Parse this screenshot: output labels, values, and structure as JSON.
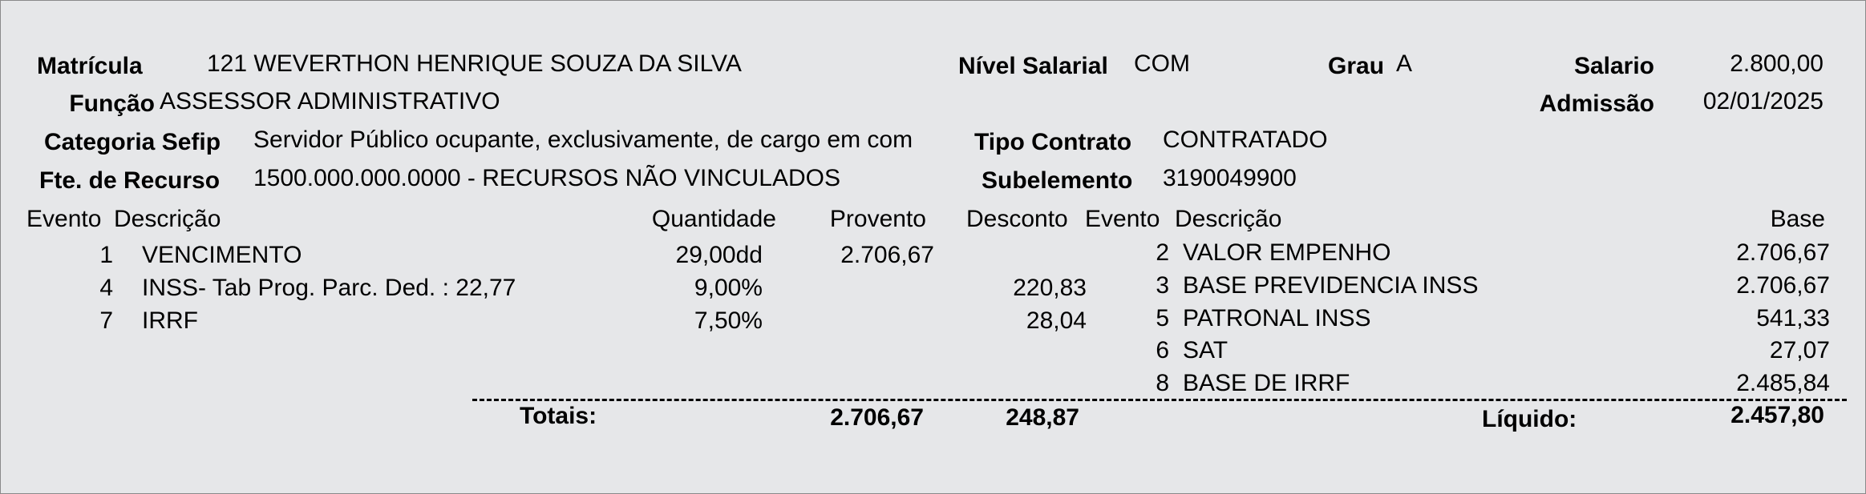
{
  "header": {
    "matricula_label": "Matrícula",
    "matricula_value": "121 WEVERTHON HENRIQUE SOUZA DA SILVA",
    "nivel_label": "Nível Salarial",
    "nivel_value": "COM",
    "grau_label": "Grau",
    "grau_value": "A",
    "salario_label": "Salario",
    "salario_value": "2.800,00",
    "funcao_label": "Função",
    "funcao_value": "ASSESSOR ADMINISTRATIVO",
    "admissao_label": "Admissão",
    "admissao_value": "02/01/2025",
    "categoria_label": "Categoria Sefip",
    "categoria_value": "Servidor Público ocupante, exclusivamente, de cargo em comissão",
    "tipo_label": "Tipo Contrato",
    "tipo_value": "CONTRATADO",
    "fonte_label": "Fte. de Recurso",
    "fonte_value": "1500.000.000.0000 - RECURSOS NÃO VINCULADOS",
    "subelemento_label": "Subelemento",
    "subelemento_value": "3190049900"
  },
  "columns": {
    "evento": "Evento",
    "descricao": "Descrição",
    "quantidade": "Quantidade",
    "provento": "Provento",
    "desconto": "Desconto",
    "evento2": "Evento",
    "descricao2": "Descrição",
    "base": "Base"
  },
  "events": [
    {
      "evento": "1",
      "descricao": "VENCIMENTO",
      "quantidade": "29,00dd",
      "provento": "2.706,67",
      "desconto": ""
    },
    {
      "evento": "4",
      "descricao": "INSS- Tab Prog. Parc. Ded. : 22,77",
      "quantidade": "9,00%",
      "provento": "",
      "desconto": "220,83"
    },
    {
      "evento": "7",
      "descricao": "IRRF",
      "quantidade": "7,50%",
      "provento": "",
      "desconto": "28,04"
    }
  ],
  "bases": [
    {
      "evento": "2",
      "descricao": "VALOR EMPENHO",
      "base": "2.706,67"
    },
    {
      "evento": "3",
      "descricao": "BASE PREVIDENCIA INSS",
      "base": "2.706,67"
    },
    {
      "evento": "5",
      "descricao": "PATRONAL INSS",
      "base": "541,33"
    },
    {
      "evento": "6",
      "descricao": "SAT",
      "base": "27,07"
    },
    {
      "evento": "8",
      "descricao": "BASE DE IRRF",
      "base": "2.485,84"
    }
  ],
  "totals": {
    "label": "Totais:",
    "provento": "2.706,67",
    "desconto": "248,87",
    "liquido_label": "Líquido:",
    "liquido": "2.457,80"
  }
}
